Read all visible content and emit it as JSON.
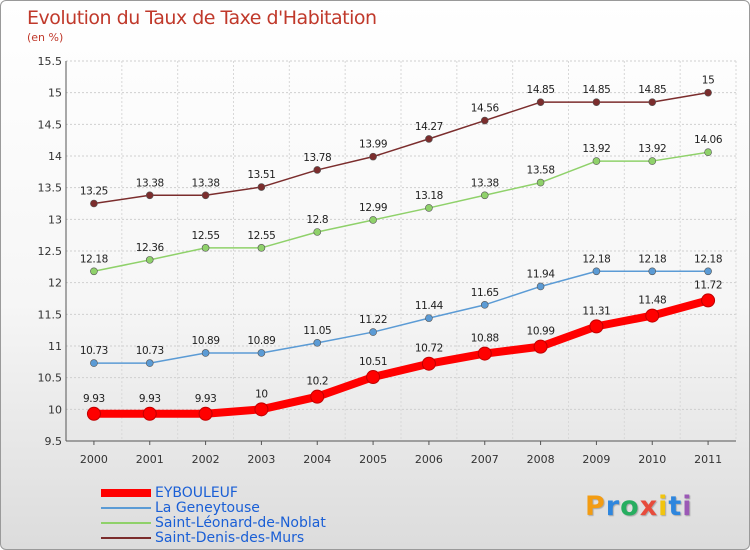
{
  "header": {
    "title": "Evolution du Taux de Taxe d'Habitation",
    "unit": "(en %)"
  },
  "logo": {
    "letters": [
      "P",
      "r",
      "o",
      "x",
      "i",
      "t",
      "i"
    ],
    "colors": [
      "#f39c12",
      "#2e86de",
      "#27ae60",
      "#e74c3c",
      "#f1c40f",
      "#2e86de",
      "#9b59b6"
    ]
  },
  "chart_data": {
    "type": "line",
    "title": "Evolution du Taux de Taxe d'Habitation",
    "ylabel": "(en %)",
    "xlabel": "",
    "x": [
      "2000",
      "2001",
      "2002",
      "2003",
      "2004",
      "2005",
      "2006",
      "2007",
      "2008",
      "2009",
      "2010",
      "2011"
    ],
    "ylim": [
      9.5,
      15.5
    ],
    "yticks": [
      "9.5",
      "10",
      "10.5",
      "11",
      "11.5",
      "12",
      "12.5",
      "13",
      "13.5",
      "14",
      "14.5",
      "15",
      "15.5"
    ],
    "grid": true,
    "legend_position": "bottom-left",
    "series": [
      {
        "name": "EYBOULEUF",
        "color": "#ff0000",
        "values": [
          9.93,
          9.93,
          9.93,
          10,
          10.2,
          10.51,
          10.72,
          10.88,
          10.99,
          11.31,
          11.48,
          11.72
        ],
        "labels": [
          "9.93",
          "9.93",
          "9.93",
          "10",
          "10.2",
          "10.51",
          "10.72",
          "10.88",
          "10.99",
          "11.31",
          "11.48",
          "11.72"
        ]
      },
      {
        "name": "La Geneytouse",
        "color": "#5b9bd5",
        "values": [
          10.73,
          10.73,
          10.89,
          10.89,
          11.05,
          11.22,
          11.44,
          11.65,
          11.94,
          12.18,
          12.18,
          12.18
        ],
        "labels": [
          "10.73",
          "10.73",
          "10.89",
          "10.89",
          "11.05",
          "11.22",
          "11.44",
          "11.65",
          "11.94",
          "12.18",
          "12.18",
          "12.18"
        ]
      },
      {
        "name": "Saint-Léonard-de-Noblat",
        "color": "#8fd16a",
        "values": [
          12.18,
          12.36,
          12.55,
          12.55,
          12.8,
          12.99,
          13.18,
          13.38,
          13.58,
          13.92,
          13.92,
          14.06
        ],
        "labels": [
          "12.18",
          "12.36",
          "12.55",
          "12.55",
          "12.8",
          "12.99",
          "13.18",
          "13.38",
          "13.58",
          "13.92",
          "13.92",
          "14.06"
        ]
      },
      {
        "name": "Saint-Denis-des-Murs",
        "color": "#7b2d2d",
        "values": [
          13.25,
          13.38,
          13.38,
          13.51,
          13.78,
          13.99,
          14.27,
          14.56,
          14.85,
          14.85,
          14.85,
          15
        ],
        "labels": [
          "13.25",
          "13.38",
          "13.38",
          "13.51",
          "13.78",
          "13.99",
          "14.27",
          "14.56",
          "14.85",
          "14.85",
          "14.85",
          "15"
        ]
      }
    ]
  }
}
